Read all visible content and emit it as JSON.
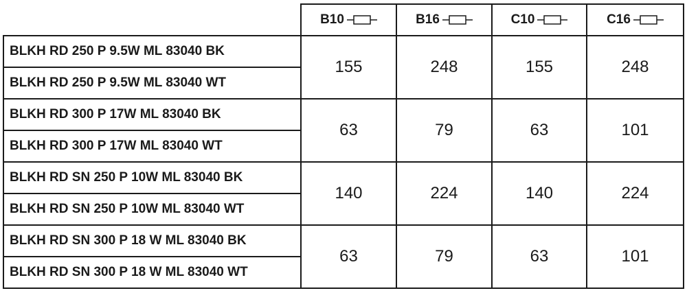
{
  "columns": [
    {
      "label": "B10",
      "icon": "fuse-icon"
    },
    {
      "label": "B16",
      "icon": "fuse-icon"
    },
    {
      "label": "C10",
      "icon": "fuse-icon"
    },
    {
      "label": "C16",
      "icon": "fuse-icon"
    }
  ],
  "groups": [
    {
      "products": [
        "BLKH RD 250 P 9.5W ML 83040 BK",
        "BLKH RD 250 P 9.5W ML 83040 WT"
      ],
      "values": [
        "155",
        "248",
        "155",
        "248"
      ]
    },
    {
      "products": [
        "BLKH RD 300 P 17W ML 83040 BK",
        "BLKH RD 300 P 17W ML 83040 WT"
      ],
      "values": [
        "63",
        "79",
        "63",
        "101"
      ]
    },
    {
      "products": [
        "BLKH RD SN 250 P 10W ML 83040 BK",
        "BLKH RD SN 250 P 10W ML 83040 WT"
      ],
      "values": [
        "140",
        "224",
        "140",
        "224"
      ]
    },
    {
      "products": [
        "BLKH RD SN 300 P 18 W ML 83040 BK",
        "BLKH RD SN 300 P 18 W ML 83040 WT"
      ],
      "values": [
        "63",
        "79",
        "63",
        "101"
      ]
    }
  ]
}
